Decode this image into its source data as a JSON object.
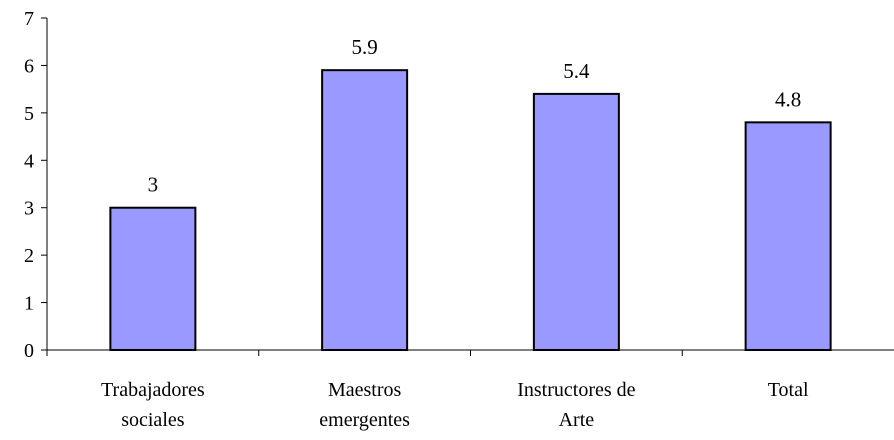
{
  "chart_data": {
    "type": "bar",
    "categories": [
      [
        "Trabajadores",
        "sociales"
      ],
      [
        "Maestros",
        "emergentes"
      ],
      [
        "Instructores de",
        "Arte"
      ],
      [
        "Total"
      ]
    ],
    "values": [
      3,
      5.9,
      5.4,
      4.8
    ],
    "data_labels": [
      "3",
      "5.9",
      "5.4",
      "4.8"
    ],
    "yticks": [
      "0",
      "1",
      "2",
      "3",
      "4",
      "5",
      "6",
      "7"
    ],
    "ylim": [
      0,
      7
    ],
    "title": "",
    "xlabel": "",
    "ylabel": "",
    "grid": false,
    "legend": "none",
    "colors": {
      "bar_fill": "#9999ff",
      "bar_stroke": "#000000",
      "axis": "#000000"
    }
  }
}
